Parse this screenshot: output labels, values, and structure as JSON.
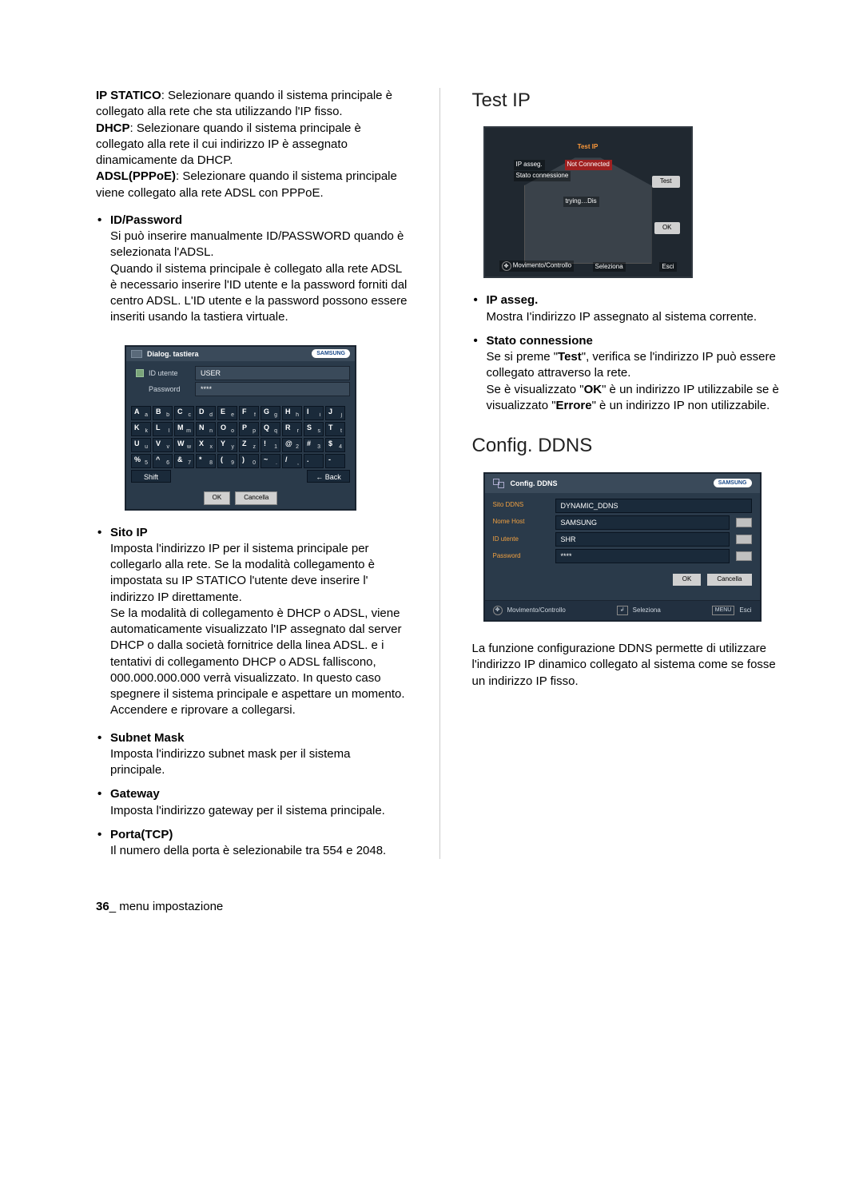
{
  "left": {
    "intro": {
      "ip_statico_label": "IP STATICO",
      "ip_statico_text": ": Selezionare quando il sistema principale è collegato alla rete che sta utilizzando l'IP fisso.",
      "dhcp_label": "DHCP",
      "dhcp_text": ": Selezionare quando il sistema principale è collegato alla rete il cui indirizzo IP è assegnato dinamicamente da DHCP.",
      "adsl_label": "ADSL(PPPoE)",
      "adsl_text": ": Selezionare quando il sistema principale viene collegato alla rete ADSL con PPPoE."
    },
    "idpw": {
      "label": "ID/Password",
      "p1": "Si può inserire manualmente ID/PASSWORD quando è selezionata l'ADSL.",
      "p2": "Quando il sistema principale è collegato alla rete ADSL è necessario inserire l'ID utente e la password forniti dal centro ADSL. L'ID utente e la password possono essere inseriti usando la tastiera virtuale."
    },
    "kb": {
      "title": "Dialog. tastiera",
      "logo": "SAMSUNG",
      "id_label": "ID utente",
      "id_value": "USER",
      "pw_label": "Password",
      "pw_value": "****",
      "rows": [
        [
          [
            "A",
            "a"
          ],
          [
            "B",
            "b"
          ],
          [
            "C",
            "c"
          ],
          [
            "D",
            "d"
          ],
          [
            "E",
            "e"
          ],
          [
            "F",
            "f"
          ],
          [
            "G",
            "g"
          ],
          [
            "H",
            "h"
          ],
          [
            "I",
            "i"
          ],
          [
            "J",
            "j"
          ]
        ],
        [
          [
            "K",
            "k"
          ],
          [
            "L",
            "l"
          ],
          [
            "M",
            "m"
          ],
          [
            "N",
            "n"
          ],
          [
            "O",
            "o"
          ],
          [
            "P",
            "p"
          ],
          [
            "Q",
            "q"
          ],
          [
            "R",
            "r"
          ],
          [
            "S",
            "s"
          ],
          [
            "T",
            "t"
          ]
        ],
        [
          [
            "U",
            "u"
          ],
          [
            "V",
            "v"
          ],
          [
            "W",
            "w"
          ],
          [
            "X",
            "x"
          ],
          [
            "Y",
            "y"
          ],
          [
            "Z",
            "z"
          ],
          [
            "!",
            "1"
          ],
          [
            "@",
            "2"
          ],
          [
            "#",
            "3"
          ],
          [
            "$",
            "4"
          ]
        ],
        [
          [
            "%",
            "5"
          ],
          [
            "^",
            "6"
          ],
          [
            "&",
            "7"
          ],
          [
            "*",
            "8"
          ],
          [
            "(",
            "9"
          ],
          [
            ")",
            "0"
          ],
          [
            "~",
            "."
          ],
          [
            "/",
            ","
          ],
          [
            ".",
            ""
          ],
          [
            "-",
            ""
          ]
        ]
      ],
      "shift": "Shift",
      "back": "← Back",
      "ok": "OK",
      "cancel": "Cancella"
    },
    "sitoip": {
      "label": "Sito IP",
      "p1": "Imposta l'indirizzo IP per il sistema principale per collegarlo alla rete. Se la modalità collegamento è impostata su IP STATICO l'utente deve inserire l' indirizzo IP direttamente.",
      "p2": "Se la modalità di collegamento è DHCP o ADSL, viene automaticamente visualizzato l'IP assegnato dal server DHCP o dalla società fornitrice della linea ADSL. e i tentativi di collegamento DHCP o ADSL falliscono, 000.000.000.000 verrà visualizzato. In questo caso spegnere il sistema principale e aspettare un momento. Accendere e riprovare a collegarsi."
    },
    "subnet": {
      "label": "Subnet Mask",
      "p1": "Imposta l'indirizzo subnet mask per il sistema principale."
    },
    "gateway": {
      "label": "Gateway",
      "p1": "Imposta l'indirizzo gateway per il sistema principale."
    },
    "porta": {
      "label": "Porta(TCP)",
      "p1": "Il numero della porta è selezionabile tra 554 e 2048."
    }
  },
  "right": {
    "testip": {
      "title": "Test IP",
      "panel_title": "Test IP",
      "ip_label": "IP asseg.",
      "conn_label": "Stato connessione",
      "not_connected": "Not Connected",
      "trying": "trying…Dis",
      "test_btn": "Test",
      "ok_btn": "OK",
      "footer_move": "Movimento/Controllo",
      "footer_sel": "Seleziona",
      "footer_esc": "Esci",
      "b_ip_label": "IP asseg.",
      "b_ip_text": "Mostra I'indirizzo IP assegnato al sistema corrente.",
      "b_conn_label": "Stato connessione",
      "b_conn_p1a": "Se si preme \"",
      "b_conn_test": "Test",
      "b_conn_p1b": "\", verifica se l'indirizzo IP può essere collegato attraverso la rete.",
      "b_conn_p2a": "Se è visualizzato \"",
      "b_conn_ok": "OK",
      "b_conn_p2b": "\" è un indirizzo IP utilizzabile se è visualizzato \"",
      "b_conn_err": "Errore",
      "b_conn_p2c": "\" è un indirizzo IP non utilizzabile."
    },
    "ddns": {
      "title": "Config. DDNS",
      "panel_title": "Config. DDNS",
      "logo": "SAMSUNG",
      "rows": [
        {
          "label": "Sito DDNS",
          "value": "DYNAMIC_DDNS",
          "kb": false
        },
        {
          "label": "Nome Host",
          "value": "SAMSUNG",
          "kb": true
        },
        {
          "label": "ID utente",
          "value": "SHR",
          "kb": true
        },
        {
          "label": "Password",
          "value": "****",
          "kb": true
        }
      ],
      "ok": "OK",
      "cancel": "Cancella",
      "footer_move": "Movimento/Controllo",
      "footer_sel": "Seleziona",
      "footer_esc": "Esci",
      "footer_menu": "MENU",
      "desc": "La funzione configurazione DDNS permette di utilizzare l'indirizzo IP dinamico collegato al sistema come se fosse un indirizzo IP fisso."
    }
  },
  "footer": {
    "num": "36",
    "sep": "_",
    "text": " menu impostazione"
  },
  "colors": {
    "dialog_bg": "#2a3a4a",
    "dialog_dark": "#1a2a3a",
    "accent": "#f0a040"
  }
}
